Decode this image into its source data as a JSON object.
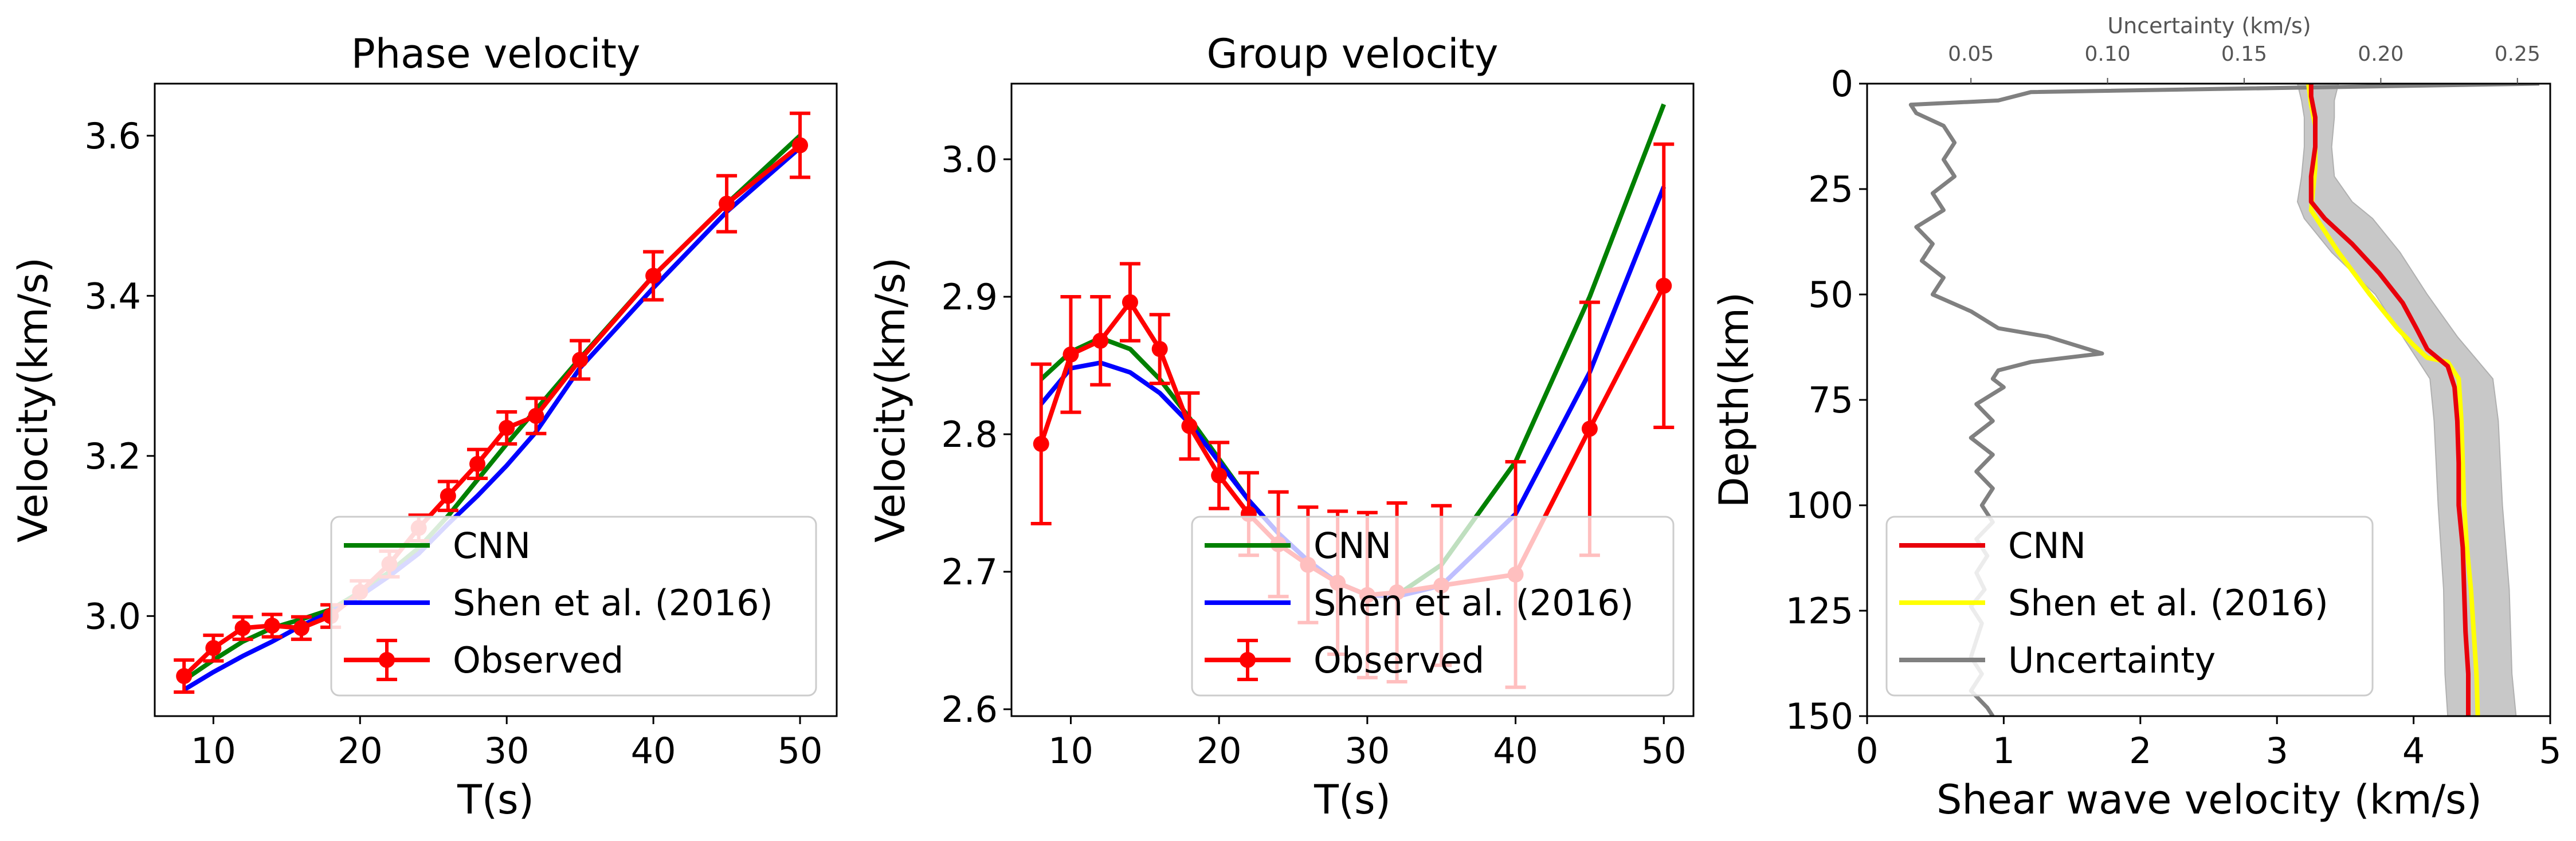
{
  "colors": {
    "cnn_dispersion": "#008000",
    "shen": "#0000ff",
    "observed": "#ff0000",
    "cnn_profile": "#e8000b",
    "shen_profile": "#ffff00",
    "uncertainty": "#808080",
    "band": "#c8c8c8"
  },
  "chart_data": [
    {
      "type": "line",
      "title": "Phase velocity",
      "xlabel": "T(s)",
      "ylabel": "Velocity(km/s)",
      "xlim": [
        6,
        52.5
      ],
      "ylim": [
        2.875,
        3.665
      ],
      "xticks": [
        10,
        20,
        30,
        40,
        50
      ],
      "yticks": [
        3.0,
        3.2,
        3.4,
        3.6
      ],
      "ytick_labels": [
        "3.0",
        "3.2",
        "3.4",
        "3.6"
      ],
      "legend_position": "lower right",
      "series": [
        {
          "name": "CNN",
          "color": "#008000",
          "x": [
            8,
            10,
            12,
            14,
            16,
            18,
            20,
            22,
            24,
            26,
            28,
            30,
            32,
            35,
            40,
            45,
            50
          ],
          "y": [
            2.92,
            2.945,
            2.968,
            2.985,
            2.996,
            3.008,
            3.03,
            3.055,
            3.085,
            3.125,
            3.17,
            3.215,
            3.258,
            3.322,
            3.425,
            3.515,
            3.6
          ]
        },
        {
          "name": "Shen et al. (2016)",
          "color": "#0000ff",
          "x": [
            8,
            10,
            12,
            14,
            16,
            18,
            20,
            22,
            24,
            26,
            28,
            30,
            32,
            35,
            40,
            45,
            50
          ],
          "y": [
            2.908,
            2.93,
            2.95,
            2.968,
            2.988,
            3.005,
            3.025,
            3.05,
            3.078,
            3.115,
            3.15,
            3.188,
            3.23,
            3.31,
            3.41,
            3.505,
            3.585
          ]
        },
        {
          "name": "Observed",
          "color": "#ff0000",
          "x": [
            8,
            10,
            12,
            14,
            16,
            18,
            20,
            22,
            24,
            26,
            28,
            30,
            32,
            35,
            40,
            45,
            50
          ],
          "y": [
            2.925,
            2.96,
            2.985,
            2.988,
            2.985,
            3.0,
            3.03,
            3.065,
            3.11,
            3.15,
            3.19,
            3.235,
            3.25,
            3.32,
            3.425,
            3.515,
            3.588
          ],
          "err": [
            0.02,
            0.016,
            0.014,
            0.014,
            0.014,
            0.014,
            0.014,
            0.016,
            0.016,
            0.018,
            0.018,
            0.02,
            0.022,
            0.024,
            0.03,
            0.035,
            0.04
          ]
        }
      ]
    },
    {
      "type": "line",
      "title": "Group velocity",
      "xlabel": "T(s)",
      "ylabel": "Velocity(km/s)",
      "xlim": [
        6,
        52
      ],
      "ylim": [
        2.595,
        3.055
      ],
      "xticks": [
        10,
        20,
        30,
        40,
        50
      ],
      "yticks": [
        2.6,
        2.7,
        2.8,
        2.9,
        3.0
      ],
      "ytick_labels": [
        "2.6",
        "2.7",
        "2.8",
        "2.9",
        "3.0"
      ],
      "legend_position": "lower right",
      "series": [
        {
          "name": "CNN",
          "color": "#008000",
          "x": [
            8,
            10,
            12,
            14,
            16,
            18,
            20,
            22,
            24,
            26,
            28,
            30,
            32,
            35,
            40,
            45,
            50
          ],
          "y": [
            2.84,
            2.86,
            2.87,
            2.862,
            2.84,
            2.812,
            2.782,
            2.752,
            2.728,
            2.708,
            2.692,
            2.683,
            2.683,
            2.705,
            2.78,
            2.9,
            3.04
          ]
        },
        {
          "name": "Shen et al. (2016)",
          "color": "#0000ff",
          "x": [
            8,
            10,
            12,
            14,
            16,
            18,
            20,
            22,
            24,
            26,
            28,
            30,
            32,
            35,
            40,
            45,
            50
          ],
          "y": [
            2.822,
            2.848,
            2.852,
            2.845,
            2.83,
            2.808,
            2.78,
            2.752,
            2.728,
            2.708,
            2.692,
            2.683,
            2.682,
            2.69,
            2.742,
            2.845,
            2.98
          ]
        },
        {
          "name": "Observed",
          "color": "#ff0000",
          "x": [
            8,
            10,
            12,
            14,
            16,
            18,
            20,
            22,
            24,
            26,
            28,
            30,
            32,
            35,
            40,
            45,
            50
          ],
          "y": [
            2.793,
            2.858,
            2.868,
            2.896,
            2.862,
            2.806,
            2.77,
            2.742,
            2.72,
            2.705,
            2.692,
            2.683,
            2.685,
            2.69,
            2.698,
            2.804,
            2.908
          ],
          "err": [
            0.058,
            0.042,
            0.032,
            0.028,
            0.025,
            0.024,
            0.024,
            0.03,
            0.038,
            0.042,
            0.052,
            0.06,
            0.065,
            0.058,
            0.082,
            0.092,
            0.103
          ]
        }
      ]
    },
    {
      "type": "line",
      "xlabel": "Shear wave velocity (km/s)",
      "ylabel": "Depth(km)",
      "xlim": [
        0,
        5
      ],
      "ylim": [
        150,
        0
      ],
      "xticks": [
        0,
        1,
        2,
        3,
        4,
        5
      ],
      "yticks": [
        0,
        25,
        50,
        75,
        100,
        125,
        150
      ],
      "top_axis": {
        "label": "Uncertainty (km/s)",
        "xlim": [
          0.012,
          0.262
        ],
        "ticks": [
          0.05,
          0.1,
          0.15,
          0.2,
          0.25
        ],
        "tick_labels": [
          "0.05",
          "0.10",
          "0.15",
          "0.20",
          "0.25"
        ]
      },
      "legend_position": "lower left",
      "series": [
        {
          "name": "CNN",
          "color": "#e8000b",
          "axis": "bottom",
          "depth": [
            0,
            3,
            8,
            15,
            22,
            28,
            32,
            38,
            45,
            52,
            58,
            63,
            67,
            72,
            80,
            90,
            100,
            110,
            120,
            130,
            140,
            150
          ],
          "vs": [
            3.25,
            3.25,
            3.28,
            3.28,
            3.25,
            3.25,
            3.35,
            3.55,
            3.75,
            3.92,
            4.02,
            4.1,
            4.25,
            4.3,
            4.32,
            4.33,
            4.33,
            4.36,
            4.37,
            4.38,
            4.4,
            4.4
          ]
        },
        {
          "name": "Shen et al. (2016)",
          "color": "#ffff00",
          "axis": "bottom",
          "depth": [
            0,
            5,
            10,
            20,
            30,
            40,
            50,
            58,
            62,
            65,
            66,
            70,
            80,
            90,
            100,
            110,
            120,
            130,
            140,
            150
          ],
          "vs": [
            3.23,
            3.25,
            3.28,
            3.28,
            3.25,
            3.45,
            3.68,
            3.88,
            4.0,
            4.1,
            4.25,
            4.33,
            4.35,
            4.36,
            4.37,
            4.39,
            4.42,
            4.44,
            4.46,
            4.47
          ]
        },
        {
          "name": "Uncertainty",
          "color": "#808080",
          "axis": "top",
          "depth": [
            0,
            2,
            4,
            5,
            7,
            10,
            14,
            18,
            22,
            26,
            30,
            34,
            38,
            42,
            46,
            50,
            54,
            58,
            60,
            62,
            64,
            66,
            68,
            70,
            72,
            76,
            80,
            84,
            88,
            92,
            96,
            100,
            104,
            108,
            112,
            116,
            120,
            124,
            128,
            132,
            136,
            140,
            144,
            148,
            150
          ],
          "unc": [
            0.258,
            0.072,
            0.06,
            0.028,
            0.03,
            0.04,
            0.044,
            0.04,
            0.044,
            0.036,
            0.04,
            0.03,
            0.036,
            0.032,
            0.04,
            0.036,
            0.05,
            0.06,
            0.078,
            0.088,
            0.098,
            0.072,
            0.06,
            0.058,
            0.062,
            0.052,
            0.058,
            0.05,
            0.058,
            0.052,
            0.058,
            0.054,
            0.058,
            0.052,
            0.056,
            0.052,
            0.055,
            0.05,
            0.054,
            0.052,
            0.05,
            0.054,
            0.05,
            0.056,
            0.058
          ]
        }
      ],
      "band": {
        "depth": [
          0,
          4,
          8,
          15,
          22,
          28,
          32,
          40,
          50,
          60,
          70,
          80,
          100,
          120,
          140,
          150
        ],
        "lower": [
          3.15,
          3.18,
          3.2,
          3.2,
          3.18,
          3.15,
          3.2,
          3.4,
          3.72,
          3.92,
          4.12,
          4.15,
          4.18,
          4.22,
          4.23,
          4.25
        ],
        "upper": [
          3.45,
          3.42,
          3.42,
          3.4,
          3.42,
          3.55,
          3.7,
          3.9,
          4.1,
          4.32,
          4.58,
          4.62,
          4.65,
          4.7,
          4.72,
          4.75
        ]
      }
    }
  ]
}
